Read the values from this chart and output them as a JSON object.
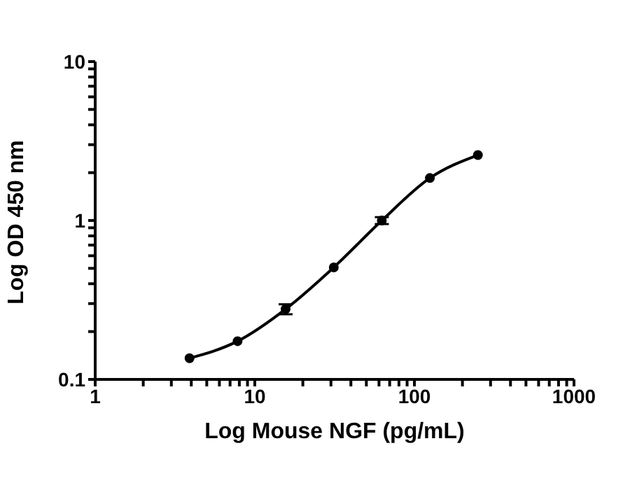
{
  "chart_data": {
    "type": "line",
    "xlabel": "Log Mouse NGF (pg/mL)",
    "ylabel": "Log OD 450 nm",
    "log": "xy",
    "marker": "circle",
    "line_style": "solid",
    "grid": false,
    "legend": false,
    "x": [
      3.9,
      7.8,
      15.6,
      31.25,
      62.5,
      125,
      250
    ],
    "series": [
      {
        "color": "#000000",
        "values": [
          0.136,
          0.174,
          0.277,
          0.507,
          1.0,
          1.85,
          2.58
        ],
        "errors": [
          null,
          null,
          0.02,
          null,
          0.05,
          null,
          null
        ]
      }
    ],
    "xlim": [
      1,
      1000
    ],
    "xticks": [
      1,
      {
        "value": 2,
        "label": null
      },
      {
        "value": 3,
        "label": null
      },
      {
        "value": 4,
        "label": null
      },
      {
        "value": 5,
        "label": null
      },
      {
        "value": 6,
        "label": null
      },
      {
        "value": 7,
        "label": null
      },
      {
        "value": 8,
        "label": null
      },
      {
        "value": 9,
        "label": null
      },
      10,
      {
        "value": 20,
        "label": null
      },
      {
        "value": 30,
        "label": null
      },
      {
        "value": 40,
        "label": null
      },
      {
        "value": 50,
        "label": null
      },
      {
        "value": 60,
        "label": null
      },
      {
        "value": 70,
        "label": null
      },
      {
        "value": 80,
        "label": null
      },
      {
        "value": 90,
        "label": null
      },
      100,
      {
        "value": 200,
        "label": null
      },
      {
        "value": 300,
        "label": null
      },
      {
        "value": 400,
        "label": null
      },
      {
        "value": 500,
        "label": null
      },
      {
        "value": 600,
        "label": null
      },
      {
        "value": 700,
        "label": null
      },
      {
        "value": 800,
        "label": null
      },
      {
        "value": 900,
        "label": null
      },
      1000
    ],
    "ylim": [
      0.1,
      10
    ],
    "yticks": [
      0.1,
      {
        "value": 0.2,
        "label": null
      },
      {
        "value": 0.3,
        "label": null
      },
      {
        "value": 0.4,
        "label": null
      },
      {
        "value": 0.5,
        "label": null
      },
      {
        "value": 0.6,
        "label": null
      },
      {
        "value": 0.7,
        "label": null
      },
      {
        "value": 0.8,
        "label": null
      },
      {
        "value": 0.9,
        "label": null
      },
      1,
      {
        "value": 2,
        "label": null
      },
      {
        "value": 3,
        "label": null
      },
      {
        "value": 4,
        "label": null
      },
      {
        "value": 5,
        "label": null
      },
      {
        "value": 6,
        "label": null
      },
      {
        "value": 7,
        "label": null
      },
      {
        "value": 8,
        "label": null
      },
      {
        "value": 9,
        "label": null
      },
      10
    ]
  }
}
